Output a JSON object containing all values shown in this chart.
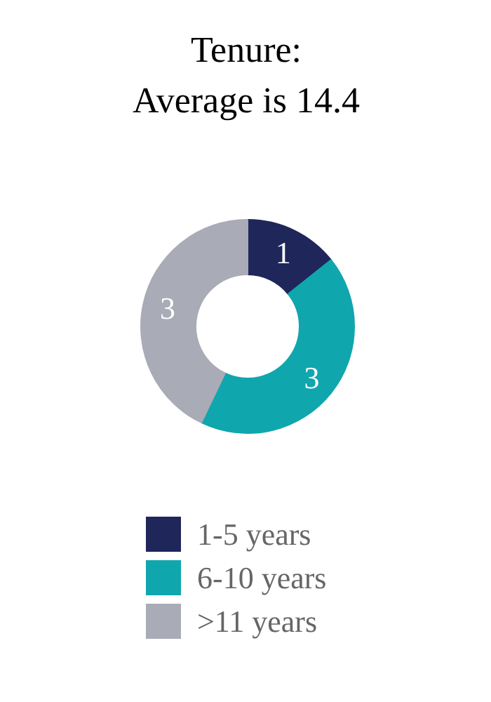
{
  "chart_data": {
    "type": "donut",
    "title": "Tenure:\nAverage is 14.4",
    "categories": [
      "1-5 years",
      "6-10 years",
      ">11 years"
    ],
    "values": [
      1,
      3,
      3
    ],
    "colors": [
      "#1f265a",
      "#10a6ae",
      "#a9abb6"
    ],
    "data_labels": true,
    "legend": "bottom"
  }
}
